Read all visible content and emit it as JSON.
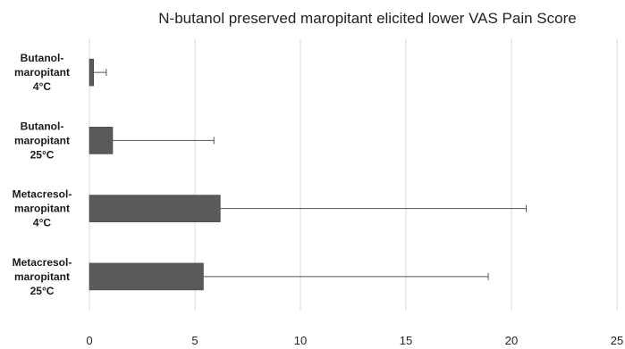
{
  "chart_data": {
    "type": "bar",
    "orientation": "horizontal",
    "title": "N-butanol preserved maropitant elicited lower VAS Pain Score",
    "categories": [
      [
        "Butanol-",
        "maropitant",
        "4°C"
      ],
      [
        "Butanol-",
        "maropitant",
        "25°C"
      ],
      [
        "Metacresol-",
        "maropitant",
        "4°C"
      ],
      [
        "Metacresol-",
        "maropitant",
        "25°C"
      ]
    ],
    "values": [
      0.2,
      1.1,
      6.2,
      5.4
    ],
    "error_plus": [
      0.6,
      4.8,
      14.5,
      13.5
    ],
    "xlim": [
      0,
      25
    ],
    "x_ticks": [
      "0",
      "5",
      "10",
      "15",
      "20",
      "25"
    ],
    "xlabel": "",
    "ylabel": "",
    "grid": true,
    "legend": "none",
    "bar_color": "#5a5a5a",
    "grid_color": "#d9d9d9",
    "error_color": "#555555"
  }
}
